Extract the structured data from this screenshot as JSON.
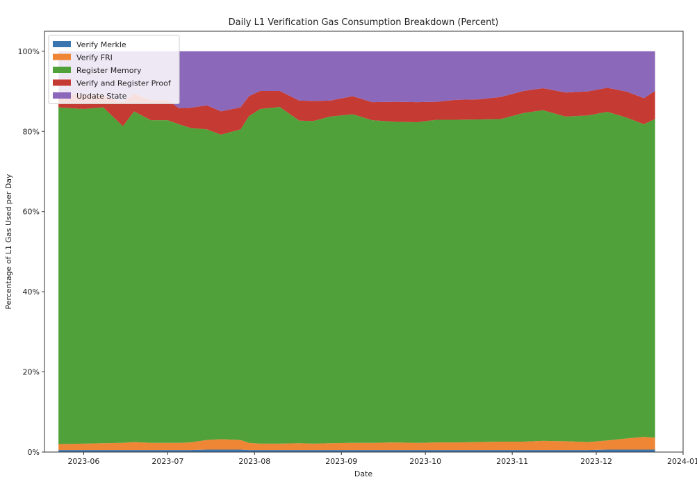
{
  "chart_data": {
    "type": "area",
    "stacked": true,
    "normalized_percent": true,
    "title": "Daily L1 Verification Gas Consumption Breakdown (Percent)",
    "xlabel": "Date",
    "ylabel": "Percentage of L1 Gas Used per Day",
    "x_ticks": [
      "2023-06",
      "2023-07",
      "2023-08",
      "2023-09",
      "2023-10",
      "2023-11",
      "2023-12",
      "2024-01"
    ],
    "y_ticks": [
      "0%",
      "20%",
      "40%",
      "60%",
      "80%",
      "100%"
    ],
    "xlim": [
      "2023-05-18",
      "2024-01-01"
    ],
    "ylim": [
      0,
      105
    ],
    "legend_position": "top-left",
    "x": [
      "2023-05-23",
      "2023-06-01",
      "2023-06-08",
      "2023-06-15",
      "2023-06-19",
      "2023-06-25",
      "2023-07-01",
      "2023-07-05",
      "2023-07-09",
      "2023-07-15",
      "2023-07-20",
      "2023-07-27",
      "2023-07-30",
      "2023-08-03",
      "2023-08-10",
      "2023-08-17",
      "2023-08-22",
      "2023-08-28",
      "2023-09-05",
      "2023-09-12",
      "2023-09-20",
      "2023-09-28",
      "2023-10-05",
      "2023-10-12",
      "2023-10-20",
      "2023-10-28",
      "2023-11-05",
      "2023-11-12",
      "2023-11-20",
      "2023-11-28",
      "2023-12-05",
      "2023-12-12",
      "2023-12-18",
      "2023-12-22"
    ],
    "series": [
      {
        "name": "Verify Merkle",
        "color": "#3a75b0",
        "values": [
          0.5,
          0.5,
          0.5,
          0.5,
          0.5,
          0.5,
          0.5,
          0.5,
          0.5,
          0.6,
          0.6,
          0.6,
          0.5,
          0.5,
          0.5,
          0.5,
          0.5,
          0.5,
          0.5,
          0.5,
          0.5,
          0.5,
          0.5,
          0.5,
          0.5,
          0.5,
          0.5,
          0.5,
          0.5,
          0.5,
          0.6,
          0.6,
          0.6,
          0.6
        ]
      },
      {
        "name": "Verify FRI",
        "color": "#ef8636",
        "values": [
          1.5,
          1.6,
          1.7,
          1.8,
          2.0,
          1.8,
          1.8,
          1.8,
          1.9,
          2.4,
          2.6,
          2.4,
          1.8,
          1.6,
          1.6,
          1.7,
          1.6,
          1.7,
          1.8,
          1.8,
          1.9,
          1.8,
          1.9,
          1.9,
          2.0,
          2.1,
          2.1,
          2.3,
          2.2,
          2.0,
          2.3,
          2.8,
          3.2,
          3.0
        ]
      },
      {
        "name": "Register Memory",
        "color": "#51a13b",
        "values": [
          84.0,
          83.5,
          83.8,
          79.0,
          82.5,
          80.5,
          80.5,
          79.5,
          78.5,
          77.5,
          76.0,
          77.5,
          81.5,
          83.5,
          84.0,
          80.5,
          80.5,
          81.5,
          82.0,
          80.5,
          80.0,
          80.0,
          80.5,
          80.5,
          80.5,
          80.5,
          82.0,
          82.5,
          81.0,
          81.5,
          82.0,
          80.0,
          78.0,
          79.5
        ]
      },
      {
        "name": "Verify and Register Proof",
        "color": "#c53a32",
        "values": [
          3.5,
          3.5,
          3.0,
          6.0,
          4.5,
          5.0,
          5.0,
          4.0,
          5.0,
          6.0,
          5.8,
          5.5,
          5.0,
          4.5,
          4.0,
          5.0,
          5.0,
          4.0,
          4.5,
          4.5,
          5.0,
          5.0,
          4.5,
          5.0,
          5.0,
          5.5,
          5.5,
          5.5,
          6.0,
          6.0,
          6.0,
          6.5,
          6.5,
          7.0
        ]
      },
      {
        "name": "Update State",
        "color": "#8c68ba",
        "values": [
          10.5,
          10.9,
          11.0,
          12.7,
          10.5,
          12.2,
          12.2,
          14.2,
          14.1,
          13.5,
          15.0,
          14.0,
          11.2,
          9.9,
          9.9,
          12.3,
          12.4,
          12.3,
          11.2,
          12.7,
          12.6,
          12.7,
          12.6,
          12.1,
          12.0,
          11.4,
          9.9,
          9.2,
          10.3,
          10.0,
          9.1,
          10.1,
          11.7,
          9.9
        ]
      }
    ]
  }
}
